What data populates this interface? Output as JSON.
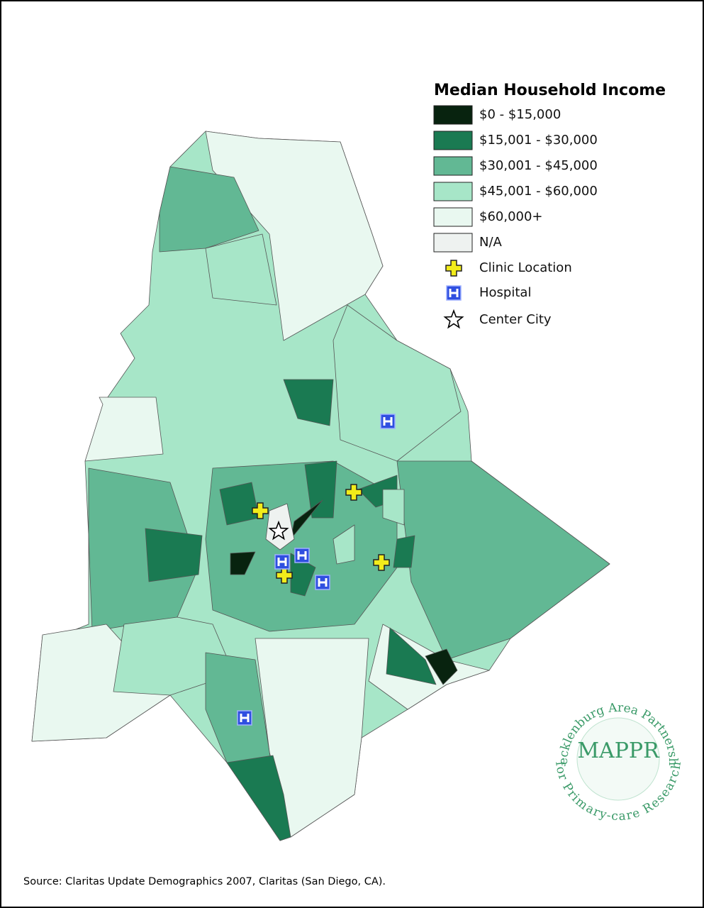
{
  "legend": {
    "title": "Median Household Income",
    "items": [
      {
        "label": "$0 - $15,000",
        "color": "#08230f"
      },
      {
        "label": "$15,001 - $30,000",
        "color": "#1a7a52"
      },
      {
        "label": "$30,001 - $45,000",
        "color": "#62b894"
      },
      {
        "label": "$45,001 - $60,000",
        "color": "#a7e6c8"
      },
      {
        "label": "$60,000+",
        "color": "#e9f8f0"
      },
      {
        "label": "N/A",
        "color": "#eef2f0"
      }
    ],
    "markers": [
      {
        "label": "Clinic Location"
      },
      {
        "label": "Hospital"
      },
      {
        "label": "Center City"
      }
    ]
  },
  "source": "Source: Claritas Update Demographics 2007, Claritas (San Diego, CA).",
  "logo": {
    "top": "Mecklenburg Area Partnership",
    "acronym": "MAPPR",
    "bottom": "for Primary-care Research"
  }
}
